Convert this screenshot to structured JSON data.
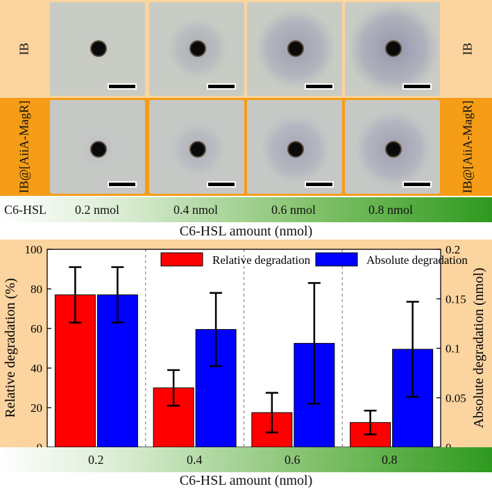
{
  "panel": {
    "row_label_ib": "IB",
    "row_label_mag": "IB@[AiiA-MagR]",
    "compound_label": "C6-HSL",
    "amounts": [
      "0.2 nmol",
      "0.4 nmol",
      "0.6 nmol",
      "0.8 nmol"
    ],
    "axis_title": "C6-HSL amount (nmol)",
    "halo_levels_ib": [
      0.05,
      0.45,
      0.7,
      0.85
    ],
    "halo_levels_mag": [
      0.1,
      0.35,
      0.55,
      0.65
    ]
  },
  "chart_data": {
    "type": "bar",
    "categories": [
      "0.2",
      "0.4",
      "0.6",
      "0.8"
    ],
    "xlabel": "C6-HSL amount (nmol)",
    "ylabel": "Relative degradation (%)",
    "ylabel_right": "Absolute degradation (nmol)",
    "ylim": [
      0,
      100
    ],
    "ylim_right": [
      0,
      0.2
    ],
    "yticks": [
      0,
      20,
      40,
      60,
      80,
      100
    ],
    "yticks_right": [
      "0",
      "0.05",
      "0.1",
      "0.15",
      "0.2"
    ],
    "legend_position": "top",
    "series": [
      {
        "name": "Relative degradation",
        "axis": "left",
        "color": "#ff0000",
        "values": [
          77,
          30,
          17.5,
          12.5
        ],
        "errors": [
          14,
          9,
          10,
          6
        ]
      },
      {
        "name": "Absolute degradation",
        "axis": "right",
        "color": "#0000ff",
        "values": [
          0.154,
          0.119,
          0.105,
          0.099
        ],
        "errors": [
          0.028,
          0.037,
          0.061,
          0.048
        ]
      }
    ]
  }
}
